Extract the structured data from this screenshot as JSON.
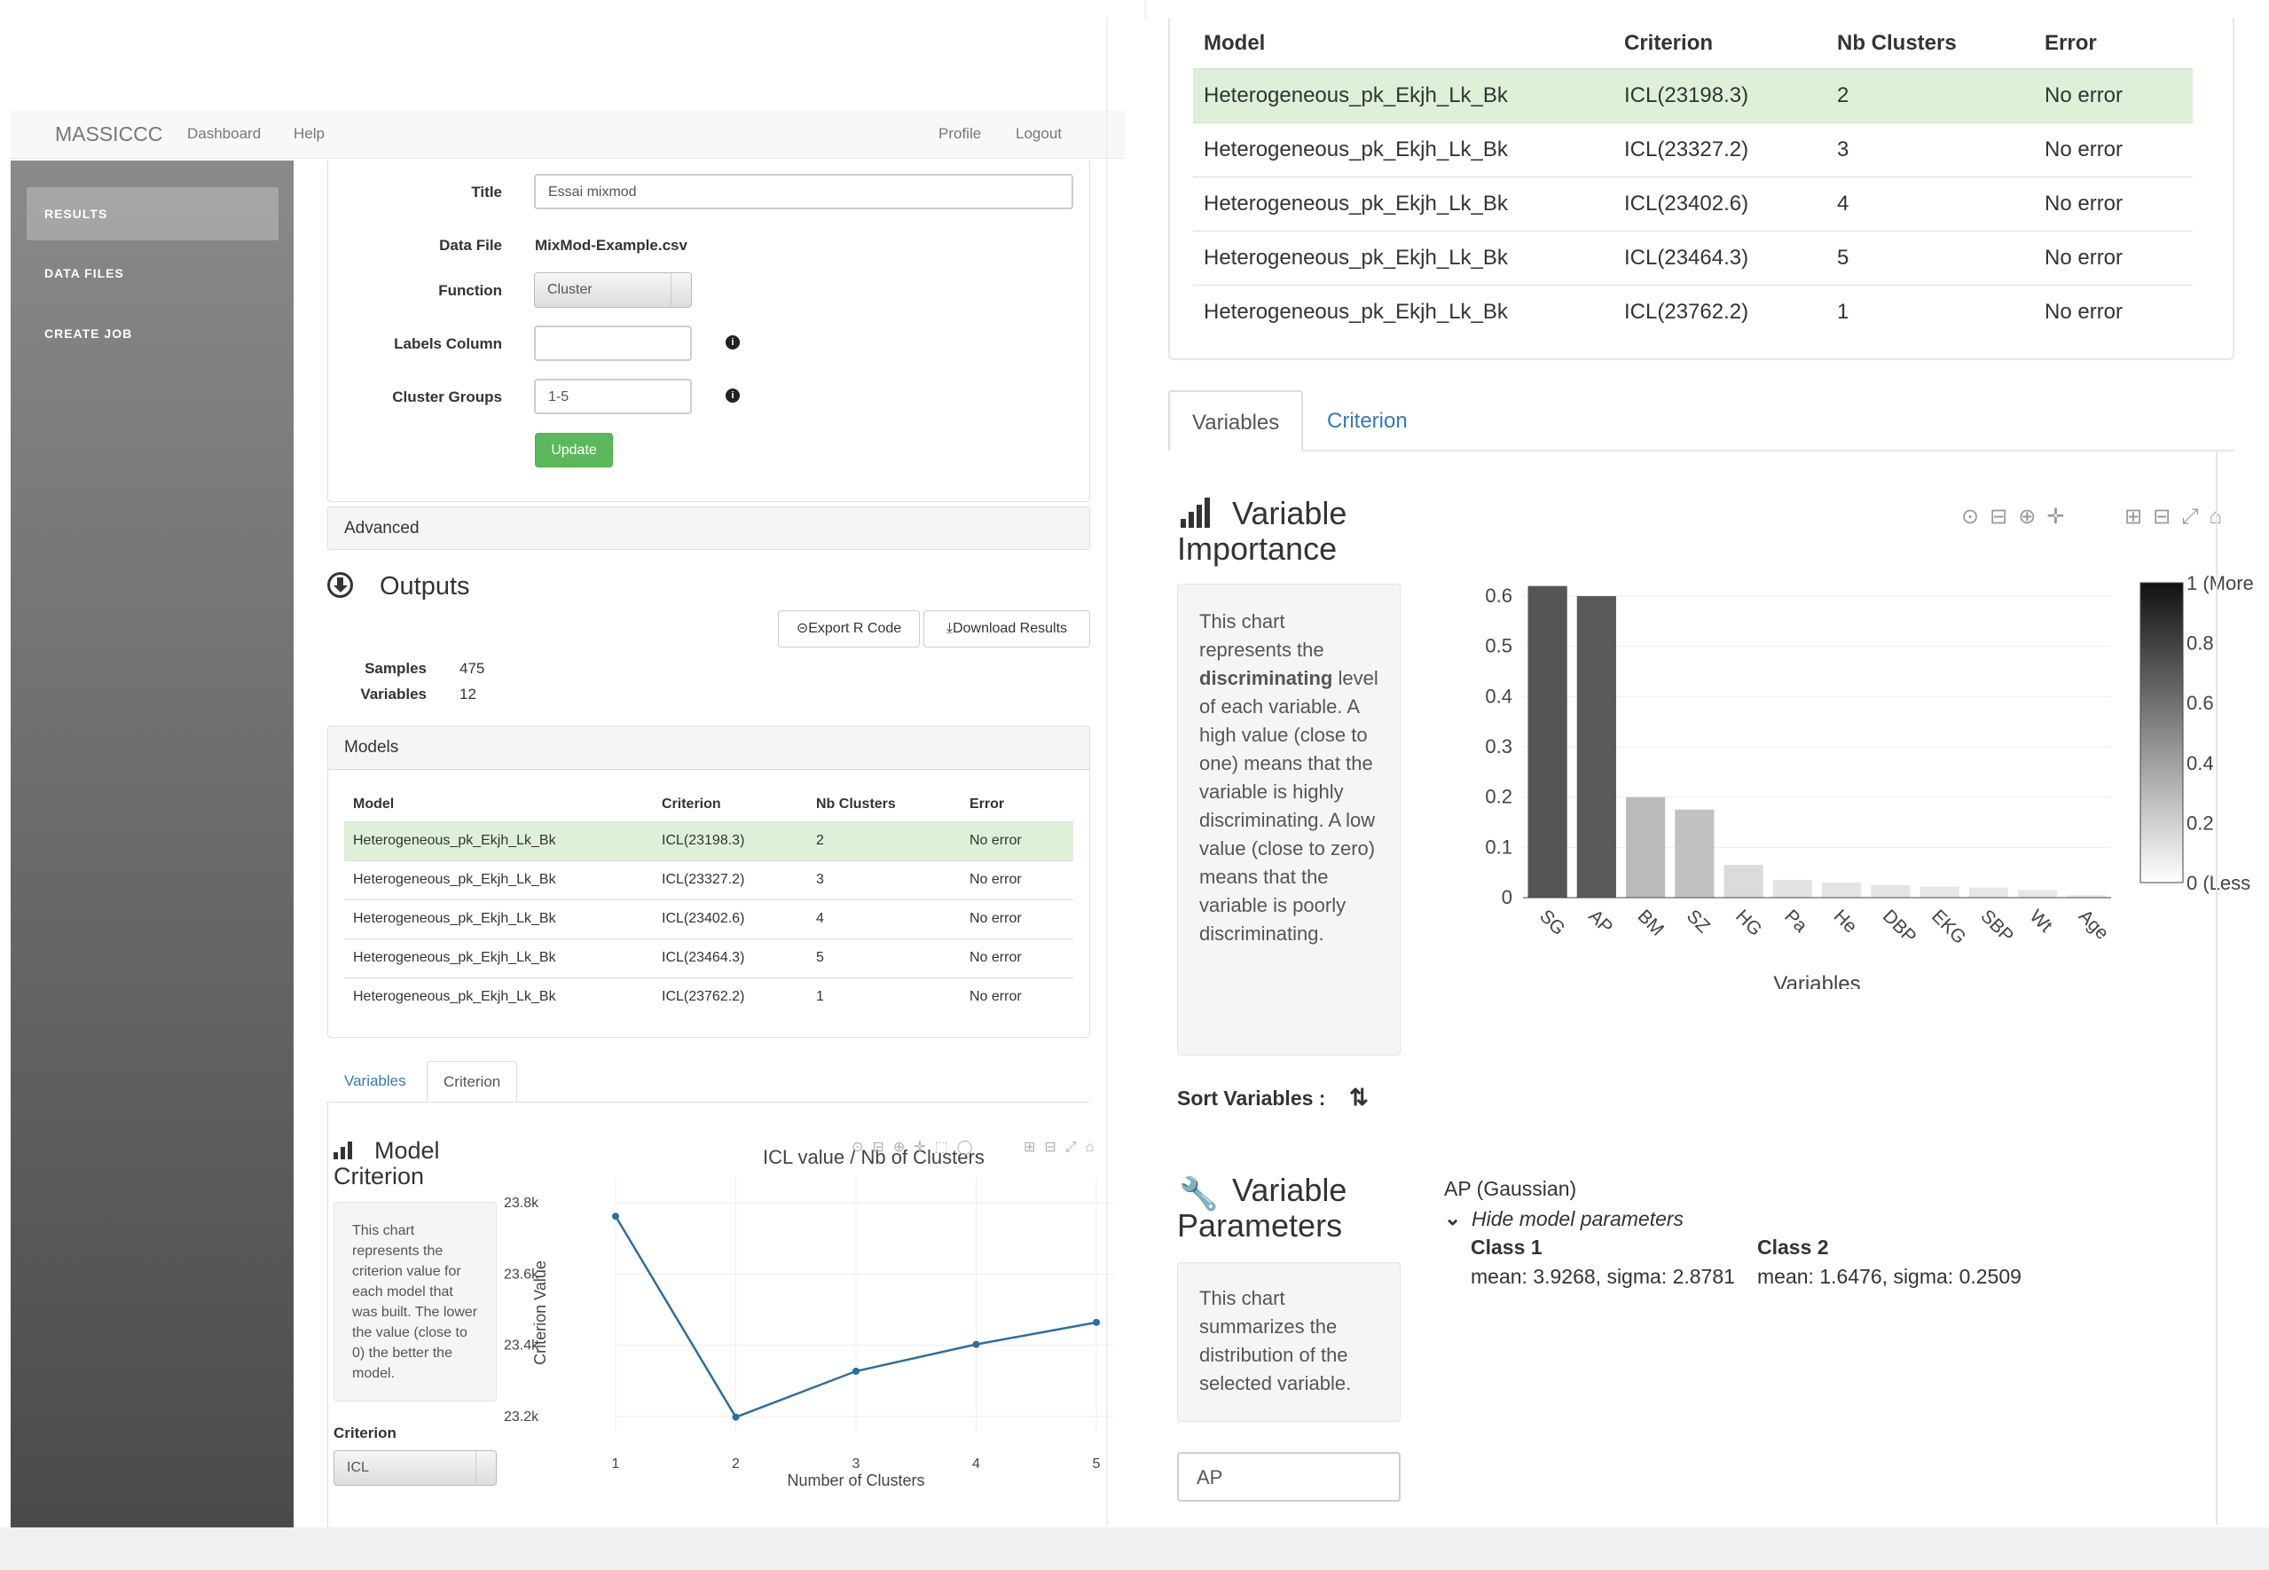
{
  "navbar": {
    "brand": "MASSICCC",
    "links": [
      "Dashboard",
      "Help"
    ],
    "right_links": [
      "Profile",
      "Logout"
    ]
  },
  "sidebar": {
    "items": [
      {
        "label": "RESULTS",
        "active": true
      },
      {
        "label": "DATA FILES",
        "active": false
      },
      {
        "label": "CREATE JOB",
        "active": false
      }
    ]
  },
  "form": {
    "title_label": "Title",
    "title_value": "Essai mixmod",
    "datafile_label": "Data File",
    "datafile_value": "MixMod-Example.csv",
    "function_label": "Function",
    "function_value": "Cluster",
    "labels_column_label": "Labels Column",
    "labels_column_value": "",
    "cluster_groups_label": "Cluster Groups",
    "cluster_groups_value": "1-5",
    "update_button": "Update",
    "advanced_label": "Advanced"
  },
  "outputs": {
    "title": "Outputs",
    "export_button": "Export R Code",
    "download_button": "Download Results",
    "samples_label": "Samples",
    "samples_value": "475",
    "variables_label": "Variables",
    "variables_value": "12"
  },
  "models": {
    "panel_title": "Models",
    "columns": [
      "Model",
      "Criterion",
      "Nb Clusters",
      "Error"
    ],
    "rows": [
      {
        "model": "Heterogeneous_pk_Ekjh_Lk_Bk",
        "criterion": "ICL(23198.3)",
        "nb": "2",
        "error": "No error",
        "selected": true
      },
      {
        "model": "Heterogeneous_pk_Ekjh_Lk_Bk",
        "criterion": "ICL(23327.2)",
        "nb": "3",
        "error": "No error",
        "selected": false
      },
      {
        "model": "Heterogeneous_pk_Ekjh_Lk_Bk",
        "criterion": "ICL(23402.6)",
        "nb": "4",
        "error": "No error",
        "selected": false
      },
      {
        "model": "Heterogeneous_pk_Ekjh_Lk_Bk",
        "criterion": "ICL(23464.3)",
        "nb": "5",
        "error": "No error",
        "selected": false
      },
      {
        "model": "Heterogeneous_pk_Ekjh_Lk_Bk",
        "criterion": "ICL(23762.2)",
        "nb": "1",
        "error": "No error",
        "selected": false
      }
    ]
  },
  "left_tabs": {
    "variables": "Variables",
    "criterion": "Criterion",
    "active": "criterion"
  },
  "model_criterion": {
    "title_line1": "Model",
    "title_line2": "Criterion",
    "description": "This chart represents the criterion value for each model that was built. The lower the value (close to 0) the better the model.",
    "criterion_label": "Criterion",
    "criterion_value": "ICL"
  },
  "right_tabs": {
    "variables": "Variables",
    "criterion": "Criterion",
    "active": "variables"
  },
  "variable_importance": {
    "title_line1": "Variable",
    "title_line2": "Importance",
    "description_pre": "This chart represents the ",
    "description_bold": "discriminating",
    "description_post": " level of each variable. A high value (close to one) means that the variable is highly discriminating. A low value (close to zero) means that the variable is poorly discriminating.",
    "sort_label": "Sort Variables :"
  },
  "variable_parameters": {
    "title_line1": "Variable",
    "title_line2": "Parameters",
    "description": "This chart summarizes the distribution of the selected variable.",
    "selected_variable": "AP",
    "header": "AP (Gaussian)",
    "toggle": "Hide model parameters",
    "class1_title": "Class 1",
    "class1_params": "mean: 3.9268, sigma: 2.8781",
    "class2_title": "Class 2",
    "class2_params": "mean: 1.6476, sigma: 0.2509"
  },
  "colors": {
    "accent": "#337ab7",
    "success": "#5cb85c",
    "selected_row": "#dff0d8",
    "line": "#2c6ea3"
  },
  "chart_data": [
    {
      "type": "line",
      "title": "ICL value / Nb of Clusters",
      "xlabel": "Number of Clusters",
      "ylabel": "Criterion Value",
      "x": [
        1,
        2,
        3,
        4,
        5
      ],
      "y": [
        23762.2,
        23198.3,
        23327.2,
        23402.6,
        23464.3
      ],
      "xticks": [
        "1",
        "2",
        "3",
        "4",
        "5"
      ],
      "yticks": [
        "23.2k",
        "23.4k",
        "23.6k",
        "23.8k"
      ],
      "ytick_values": [
        23200,
        23400,
        23600,
        23800
      ],
      "ylim": [
        23180,
        23820
      ],
      "grid": true
    },
    {
      "type": "bar",
      "title": "",
      "xlabel": "Variables",
      "ylabel": "",
      "categories": [
        "SG",
        "AP",
        "BM",
        "SZ",
        "HG",
        "Pa",
        "He",
        "DBP",
        "EKG",
        "SBP",
        "Wt",
        "Age"
      ],
      "values": [
        0.62,
        0.6,
        0.2,
        0.175,
        0.065,
        0.035,
        0.03,
        0.025,
        0.022,
        0.02,
        0.015,
        0.005
      ],
      "yticks": [
        "0",
        "0.1",
        "0.2",
        "0.3",
        "0.4",
        "0.5",
        "0.6"
      ],
      "ylim": [
        0,
        0.62
      ],
      "colorbar_ticks": [
        "1 (More",
        "0.8",
        "0.6",
        "0.4",
        "0.2",
        "0 (Less"
      ],
      "grid": true
    }
  ]
}
